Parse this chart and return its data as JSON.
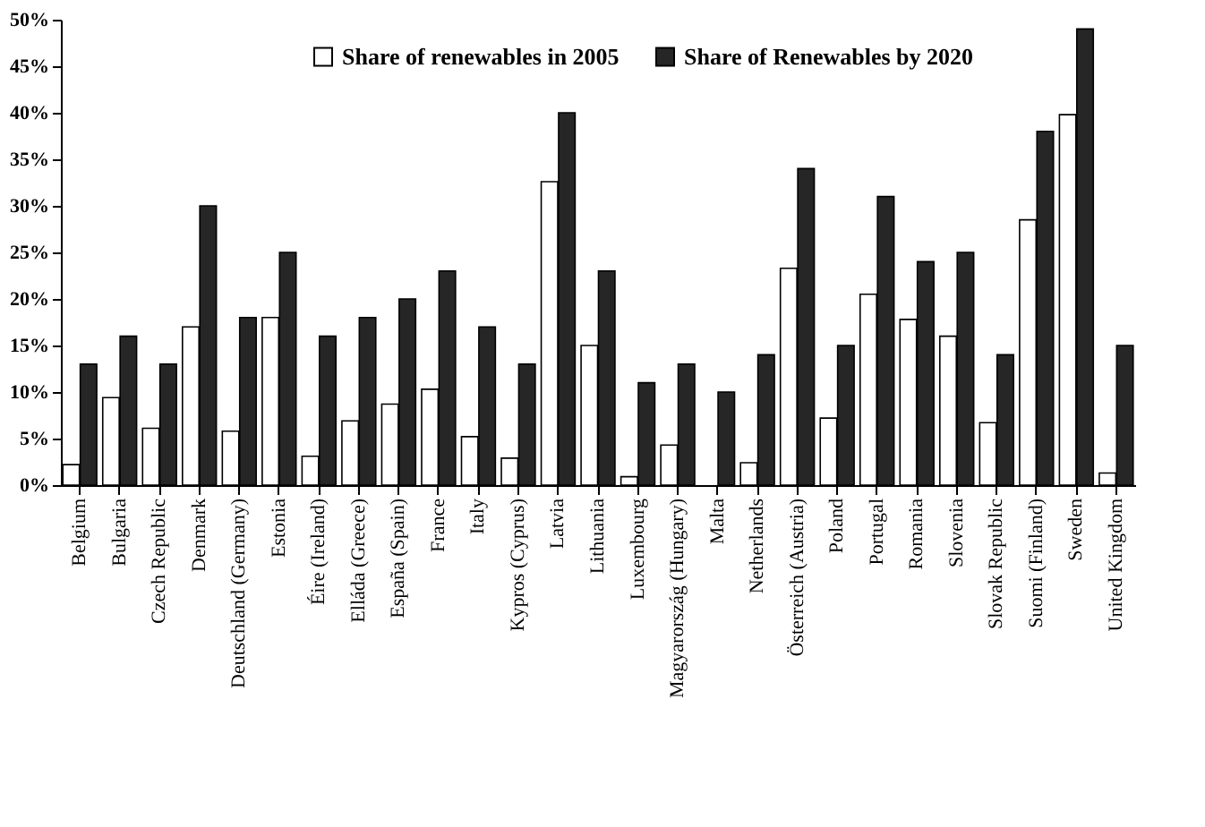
{
  "chart_data": {
    "type": "bar",
    "categories": [
      "Belgium",
      "Bulgaria",
      "Czech Republic",
      "Denmark",
      "Deutschland (Germany)",
      "Estonia",
      "Éire (Ireland)",
      "Elláda (Greece)",
      "España (Spain)",
      "France",
      "Italy",
      "Kypros (Cyprus)",
      "Latvia",
      "Lithuania",
      "Luxembourg",
      "Magyarország (Hungary)",
      "Malta",
      "Netherlands",
      "Österreich (Austria)",
      "Poland",
      "Portugal",
      "Romania",
      "Slovenia",
      "Slovak Republic",
      "Suomi (Finland)",
      "Sweden",
      "United Kingdom"
    ],
    "series": [
      {
        "name": "Share of renewables in 2005",
        "color": "#ffffff",
        "values": [
          2.2,
          9.4,
          6.1,
          17,
          5.8,
          18,
          3.1,
          6.9,
          8.7,
          10.3,
          5.2,
          2.9,
          32.6,
          15,
          0.9,
          4.3,
          null,
          2.4,
          23.3,
          7.2,
          20.5,
          17.8,
          16,
          6.7,
          28.5,
          39.8,
          1.3
        ]
      },
      {
        "name": "Share of Renewables by 2020",
        "color": "#262626",
        "values": [
          13,
          16,
          13,
          30,
          18,
          25,
          16,
          18,
          20,
          23,
          17,
          13,
          40,
          23,
          11,
          13,
          10,
          14,
          34,
          15,
          31,
          24,
          25,
          14,
          38,
          49,
          15
        ]
      }
    ],
    "ylim": [
      0,
      50
    ],
    "yticks": [
      {
        "value": 0,
        "label": "0%"
      },
      {
        "value": 5,
        "label": "5%"
      },
      {
        "value": 10,
        "label": "10%"
      },
      {
        "value": 15,
        "label": "15%"
      },
      {
        "value": 20,
        "label": "20%"
      },
      {
        "value": 25,
        "label": "25%"
      },
      {
        "value": 30,
        "label": "30%"
      },
      {
        "value": 35,
        "label": "35%"
      },
      {
        "value": 40,
        "label": "40%"
      },
      {
        "value": 45,
        "label": "45%"
      },
      {
        "value": 50,
        "label": "50%"
      }
    ],
    "grid": false,
    "legend": "top"
  }
}
